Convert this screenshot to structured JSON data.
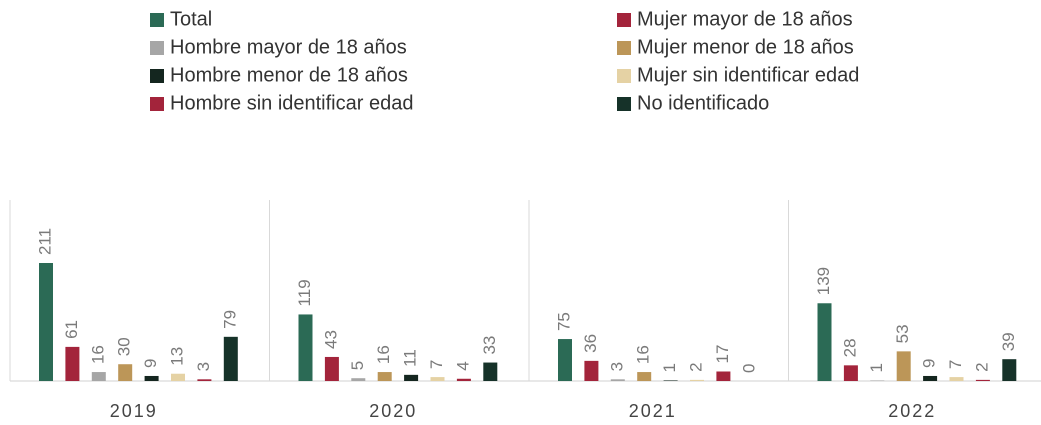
{
  "chart_data": {
    "type": "bar",
    "categories": [
      "2019",
      "2020",
      "2021",
      "2022"
    ],
    "series": [
      {
        "name": "Total",
        "color": "#2b6a55",
        "values": [
          211,
          119,
          75,
          139
        ]
      },
      {
        "name": "Mujer mayor de 18 años",
        "color": "#a3243b",
        "values": [
          61,
          43,
          36,
          28
        ]
      },
      {
        "name": "Hombre mayor de 18 años",
        "color": "#a6a6a6",
        "values": [
          16,
          5,
          3,
          1
        ]
      },
      {
        "name": "Mujer menor de 18 años",
        "color": "#bc9658",
        "values": [
          30,
          16,
          16,
          53
        ]
      },
      {
        "name": "Hombre menor de 18 años",
        "color": "#14261f",
        "values": [
          9,
          11,
          1,
          9
        ]
      },
      {
        "name": "Mujer sin identificar edad",
        "color": "#e5d2a4",
        "values": [
          13,
          7,
          2,
          7
        ]
      },
      {
        "name": "Hombre sin identificar edad",
        "color": "#a3243b",
        "values": [
          3,
          4,
          17,
          2
        ]
      },
      {
        "name": "No identificado",
        "color": "#163229",
        "values": [
          79,
          33,
          0,
          39
        ]
      }
    ]
  }
}
